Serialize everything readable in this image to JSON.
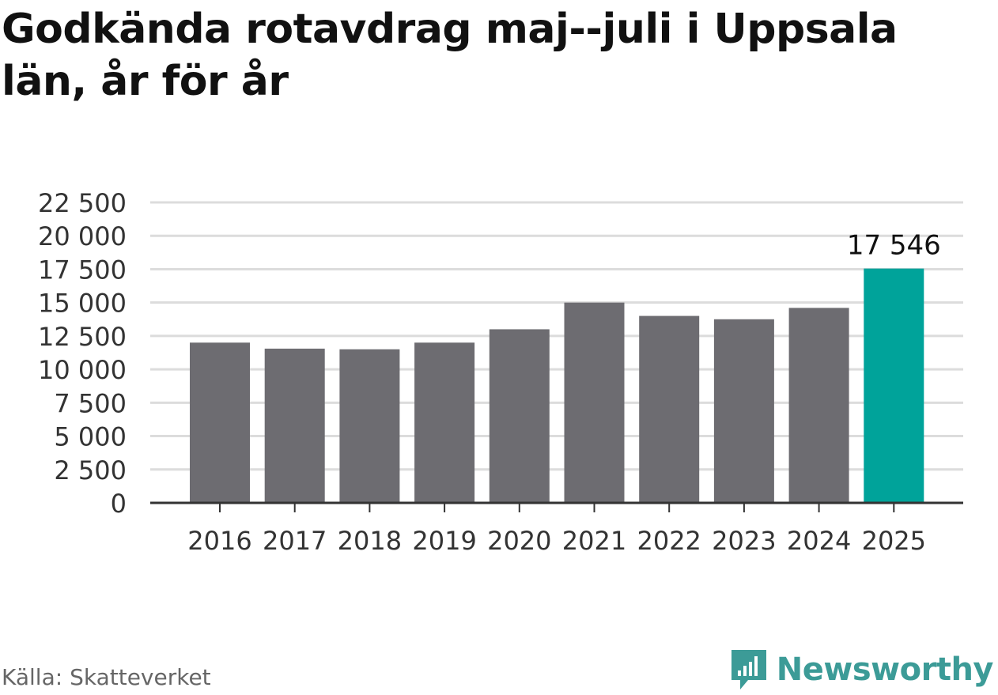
{
  "title": "Godkända rotavdrag maj--juli i Uppsala län, år för år",
  "source": "Källa: Skatteverket",
  "brand": "Newsworthy",
  "colors": {
    "bar": "#6d6c71",
    "highlight": "#00a39a",
    "grid": "#dcdcdc",
    "axis": "#333333",
    "brand": "#3c9b97"
  },
  "chart_data": {
    "type": "bar",
    "categories": [
      "2016",
      "2017",
      "2018",
      "2019",
      "2020",
      "2021",
      "2022",
      "2023",
      "2024",
      "2025"
    ],
    "values": [
      12000,
      11550,
      11500,
      12000,
      13000,
      15000,
      14000,
      13750,
      14600,
      17546
    ],
    "highlight_index": 9,
    "data_labels": [
      "",
      "",
      "",
      "",
      "",
      "",
      "",
      "",
      "",
      "17 546"
    ],
    "yticks": [
      "0",
      "2 500",
      "5 000",
      "7 500",
      "10 000",
      "12 500",
      "15 000",
      "17 500",
      "20 000",
      "22 500"
    ],
    "ylim": [
      0,
      22500
    ],
    "grid": true,
    "xlabel": "",
    "ylabel": ""
  }
}
